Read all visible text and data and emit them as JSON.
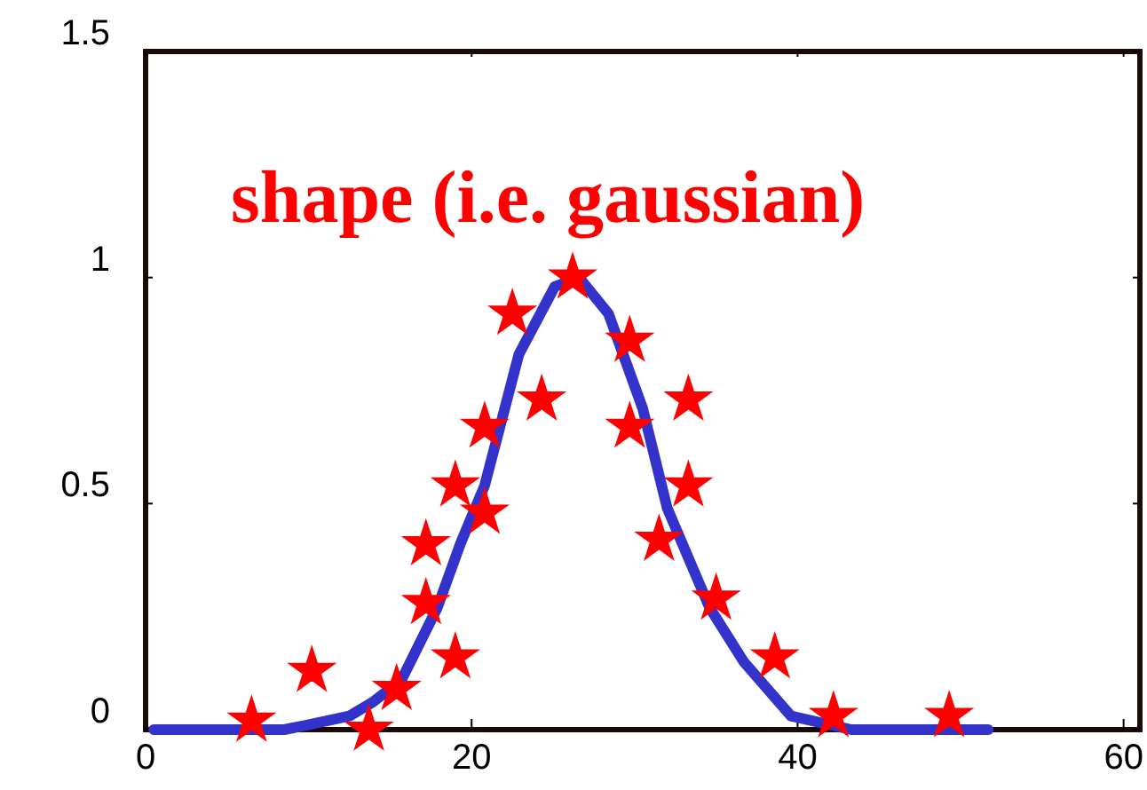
{
  "chart_data": {
    "type": "scatter",
    "xlim": [
      0,
      61
    ],
    "xticks": [
      0,
      20,
      40,
      60
    ],
    "ylim": [
      0,
      1.5
    ],
    "yticks": [
      0,
      0.5,
      1,
      1.5
    ],
    "grid": false,
    "annotations": [
      "shape (i.e. gaussian)"
    ],
    "series": [
      {
        "type": "line",
        "color": "#3333cc",
        "marker": "none",
        "line_style": "solid",
        "x": [
          0.5,
          8.5,
          9.9,
          12.5,
          13.9,
          15.7,
          17.9,
          19.3,
          20.8,
          22.9,
          25.1,
          26.6,
          28.4,
          30.5,
          32,
          34.6,
          36.7,
          39.6,
          43.3,
          51.7
        ],
        "values": [
          0,
          0,
          0.01,
          0.03,
          0.06,
          0.11,
          0.27,
          0.41,
          0.54,
          0.83,
          0.98,
          1.0,
          0.92,
          0.71,
          0.49,
          0.27,
          0.15,
          0.03,
          0,
          0
        ]
      },
      {
        "color": "#ff0000",
        "marker": "star",
        "x": [
          6.5,
          10.2,
          13.7,
          15.4,
          17.2,
          17.2,
          19.0,
          19.0,
          20.8,
          20.8,
          22.5,
          24.3,
          26.2,
          29.7,
          29.7,
          31.5,
          33.3,
          33.3,
          35.0,
          38.6,
          42.2,
          49.3
        ],
        "values": [
          0.02,
          0.13,
          0,
          0.09,
          0.28,
          0.41,
          0.16,
          0.54,
          0.48,
          0.67,
          0.92,
          0.73,
          1.0,
          0.86,
          0.67,
          0.42,
          0.73,
          0.54,
          0.29,
          0.16,
          0.03,
          0.03
        ]
      }
    ]
  }
}
